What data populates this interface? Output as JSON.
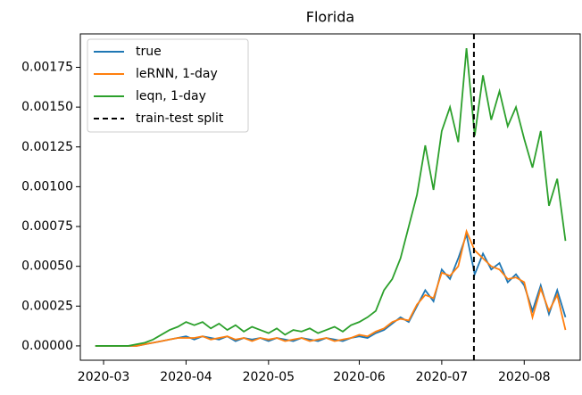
{
  "chart_data": {
    "type": "line",
    "title": "Florida",
    "categories": [
      null,
      "2020-03",
      null,
      null,
      null,
      null,
      null,
      null,
      null,
      null,
      null,
      "2020-04",
      null,
      null,
      null,
      null,
      null,
      null,
      null,
      null,
      null,
      "2020-05",
      null,
      null,
      null,
      null,
      null,
      null,
      null,
      null,
      null,
      null,
      "2020-06",
      null,
      null,
      null,
      null,
      null,
      null,
      null,
      null,
      null,
      "2020-07",
      null,
      null,
      null,
      null,
      null,
      null,
      null,
      null,
      null,
      "2020-08",
      null,
      null,
      null,
      null,
      null
    ],
    "series": [
      {
        "name": "true",
        "color": "#1f77b4",
        "values": [
          0,
          0,
          0,
          0,
          0,
          0,
          1e-05,
          2e-05,
          3e-05,
          4e-05,
          5e-05,
          6e-05,
          4e-05,
          6e-05,
          5e-05,
          4e-05,
          6e-05,
          3e-05,
          5e-05,
          4e-05,
          5e-05,
          3e-05,
          5e-05,
          4e-05,
          3e-05,
          5e-05,
          4e-05,
          3e-05,
          5e-05,
          4e-05,
          3e-05,
          5e-05,
          6e-05,
          5e-05,
          8e-05,
          0.0001,
          0.00014,
          0.00018,
          0.00015,
          0.00025,
          0.00035,
          0.00028,
          0.00048,
          0.00042,
          0.00055,
          0.0007,
          0.00045,
          0.00058,
          0.00048,
          0.00052,
          0.0004,
          0.00045,
          0.00038,
          0.00022,
          0.00038,
          0.0002,
          0.00035,
          0.00018
        ]
      },
      {
        "name": "leRNN, 1-day",
        "color": "#ff7f0e",
        "values": [
          0,
          0,
          0,
          0,
          0,
          0,
          1e-05,
          2e-05,
          3e-05,
          4e-05,
          5e-05,
          5e-05,
          5e-05,
          6e-05,
          4e-05,
          5e-05,
          6e-05,
          4e-05,
          5e-05,
          3e-05,
          5e-05,
          4e-05,
          5e-05,
          3e-05,
          4e-05,
          5e-05,
          3e-05,
          4e-05,
          5e-05,
          3e-05,
          4e-05,
          5e-05,
          7e-05,
          6e-05,
          9e-05,
          0.00011,
          0.00015,
          0.00017,
          0.00016,
          0.00026,
          0.00032,
          0.0003,
          0.00046,
          0.00044,
          0.0005,
          0.00072,
          0.0006,
          0.00055,
          0.0005,
          0.00048,
          0.00042,
          0.00043,
          0.0004,
          0.00018,
          0.00036,
          0.00022,
          0.00032,
          0.0001
        ]
      },
      {
        "name": "leqn, 1-day",
        "color": "#2ca02c",
        "values": [
          0,
          0,
          0,
          0,
          0,
          1e-05,
          2e-05,
          4e-05,
          7e-05,
          0.0001,
          0.00012,
          0.00015,
          0.00013,
          0.00015,
          0.00011,
          0.00014,
          0.0001,
          0.00013,
          9e-05,
          0.00012,
          0.0001,
          8e-05,
          0.00011,
          7e-05,
          0.0001,
          9e-05,
          0.00011,
          8e-05,
          0.0001,
          0.00012,
          9e-05,
          0.00013,
          0.00015,
          0.00018,
          0.00022,
          0.00035,
          0.00042,
          0.00055,
          0.00075,
          0.00095,
          0.00126,
          0.00098,
          0.00135,
          0.0015,
          0.00128,
          0.00187,
          0.00132,
          0.0017,
          0.00142,
          0.0016,
          0.00138,
          0.0015,
          0.0013,
          0.00112,
          0.00135,
          0.00088,
          0.00105,
          0.00066
        ]
      }
    ],
    "split": {
      "name": "train-test split",
      "color": "#000000",
      "position": 45.9
    },
    "ylim": [
      -9e-05,
      0.00196
    ],
    "yticks": [
      {
        "value": 0,
        "label": "0.00000"
      },
      0.00025,
      {
        "value": 0.0005,
        "label": "0.00050"
      },
      0.00075,
      {
        "value": 0.001,
        "label": "0.00100"
      },
      0.00125,
      {
        "value": 0.0015,
        "label": "0.00150"
      },
      0.00175
    ],
    "legend": "upper left"
  }
}
